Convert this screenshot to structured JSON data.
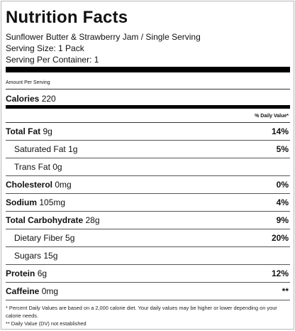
{
  "label": {
    "title": "Nutrition Facts",
    "product": "Sunflower Butter & Strawberry Jam / Single Serving",
    "serving_size": "Serving Size: 1 Pack",
    "servings_per_container": "Serving Per Container: 1",
    "amount_per_serving": "Amount Per Serving",
    "calories_label": "Calories",
    "calories_value": "220",
    "dv_header": "% Daily Value*",
    "nutrients": [
      {
        "name": "Total Fat",
        "amount": "9g",
        "dv": "14%",
        "bold": true,
        "sub": false
      },
      {
        "name": "Saturated Fat",
        "amount": "1g",
        "dv": "5%",
        "bold": false,
        "sub": true
      },
      {
        "name": "Trans Fat",
        "amount": "0g",
        "dv": "",
        "bold": false,
        "sub": true
      },
      {
        "name": "Cholesterol",
        "amount": "0mg",
        "dv": "0%",
        "bold": true,
        "sub": false
      },
      {
        "name": "Sodium",
        "amount": "105mg",
        "dv": "4%",
        "bold": true,
        "sub": false
      },
      {
        "name": "Total Carbohydrate",
        "amount": "28g",
        "dv": "9%",
        "bold": true,
        "sub": false
      },
      {
        "name": "Dietary Fiber",
        "amount": "5g",
        "dv": "20%",
        "bold": false,
        "sub": true
      },
      {
        "name": "Sugars",
        "amount": "15g",
        "dv": "",
        "bold": false,
        "sub": true
      },
      {
        "name": "Protein",
        "amount": "6g",
        "dv": "12%",
        "bold": true,
        "sub": false
      },
      {
        "name": "Caffeine",
        "amount": "0mg",
        "dv": "**",
        "bold": true,
        "sub": false
      }
    ],
    "footnote_1": "* Percent Daily Values are based on a 2,000 calorie diet. Your daily values may be higher or lower depending on your calorie needs.",
    "footnote_2": "** Daily Value (DV) not established"
  }
}
